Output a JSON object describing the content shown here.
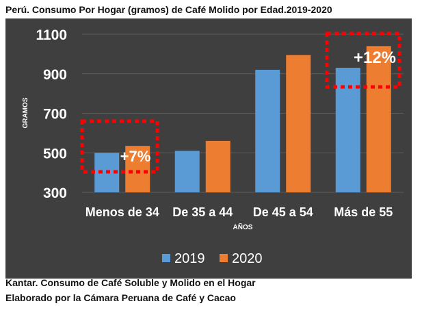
{
  "colors": {
    "background": "#3f3f3f",
    "series_2019": "#5b9bd5",
    "series_2020": "#ed7d31",
    "highlight_box": "#ff0000",
    "text": "#ffffff"
  },
  "chart_data": {
    "type": "bar",
    "title": "Perú. Consumo Por Hogar (gramos)  de Café Molido por Edad.2019-2020",
    "xlabel": "AÑOS",
    "ylabel": "GRAMOS",
    "categories": [
      "Menos de 34",
      "De 35 a 44",
      "De 45 a 54",
      "Más de 55"
    ],
    "series": [
      {
        "name": "2019",
        "values": [
          500,
          510,
          920,
          930
        ]
      },
      {
        "name": "2020",
        "values": [
          535,
          560,
          995,
          1040
        ]
      }
    ],
    "ylim": [
      300,
      1100
    ],
    "yticks": [
      300,
      500,
      700,
      900,
      1100
    ],
    "ytick_labels": [
      "300",
      "500",
      "700",
      "900",
      "1100"
    ],
    "legend_position": "bottom",
    "annotations": [
      {
        "text": "+7%",
        "category_index": 0
      },
      {
        "text": "+12%",
        "category_index": 3
      }
    ],
    "grid": true
  },
  "footer": {
    "line1": "Kantar. Consumo de Café Soluble y Molido en el Hogar",
    "line2": "Elaborado por la Cámara Peruana de Café y Cacao"
  }
}
